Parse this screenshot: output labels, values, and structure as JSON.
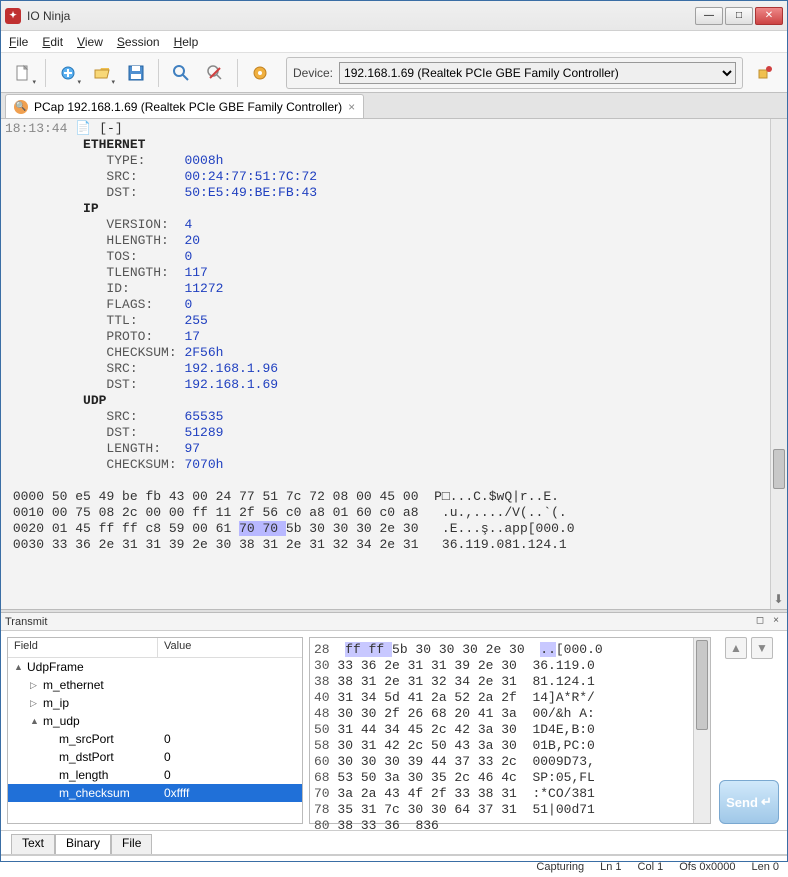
{
  "window": {
    "title": "IO Ninja"
  },
  "menu": [
    "File",
    "Edit",
    "View",
    "Session",
    "Help"
  ],
  "device": {
    "label": "Device:",
    "selected": "192.168.1.69 (Realtek PCIe GBE Family Controller)"
  },
  "tab": {
    "label": "PCap 192.168.1.69 (Realtek PCIe GBE Family Controller)"
  },
  "packet": {
    "timestamp": "18:13:44",
    "collapse": "[-]",
    "sections": [
      {
        "name": "ETHERNET",
        "indent": 1,
        "fields": [
          {
            "k": "TYPE:",
            "v": "0008h"
          },
          {
            "k": "SRC:",
            "v": "00:24:77:51:7C:72"
          },
          {
            "k": "DST:",
            "v": "50:E5:49:BE:FB:43"
          }
        ]
      },
      {
        "name": "IP",
        "indent": 1,
        "fields": [
          {
            "k": "VERSION:",
            "v": "4"
          },
          {
            "k": "HLENGTH:",
            "v": "20"
          },
          {
            "k": "TOS:",
            "v": "0"
          },
          {
            "k": "TLENGTH:",
            "v": "117"
          },
          {
            "k": "ID:",
            "v": "11272"
          },
          {
            "k": "FLAGS:",
            "v": "0"
          },
          {
            "k": "TTL:",
            "v": "255"
          },
          {
            "k": "PROTO:",
            "v": "17"
          },
          {
            "k": "CHECKSUM:",
            "v": "2F56h"
          },
          {
            "k": "SRC:",
            "v": "192.168.1.96"
          },
          {
            "k": "DST:",
            "v": "192.168.1.69"
          }
        ]
      },
      {
        "name": "UDP",
        "indent": 1,
        "fields": [
          {
            "k": "SRC:",
            "v": "65535"
          },
          {
            "k": "DST:",
            "v": "51289"
          },
          {
            "k": "LENGTH:",
            "v": "97"
          },
          {
            "k": "CHECKSUM:",
            "v": "7070h"
          }
        ]
      }
    ],
    "hexdump": [
      {
        "ofs": "0000",
        "hex": "50 e5 49 be fb 43 00 24 77 51 7c 72 08 00 45 00",
        "ascii": "P□...C.$wQ|r..E."
      },
      {
        "ofs": "0010",
        "hex": "00 75 08 2c 00 00 ff 11 2f 56 c0 a8 01 60 c0 a8",
        "ascii": " .u.,..../V(..`(."
      },
      {
        "ofs": "0020",
        "hex": "01 45 ff ff c8 59 00 61 ",
        "hlhex": "70 70 ",
        "hex2": "5b 30 30 30 2e 30",
        "ascii": " .E...ş..app[000.0"
      },
      {
        "ofs": "0030",
        "hex": "33 36 2e 31 31 39 2e 30 38 31 2e 31 32 34 2e 31",
        "ascii": " 36.119.081.124.1"
      }
    ]
  },
  "transmit": {
    "title": "Transmit"
  },
  "tree": {
    "headers": [
      "Field",
      "Value"
    ],
    "rows": [
      {
        "indent": 0,
        "tw": "▲",
        "label": "UdpFrame",
        "val": ""
      },
      {
        "indent": 1,
        "tw": "▷",
        "label": "m_ethernet",
        "val": ""
      },
      {
        "indent": 1,
        "tw": "▷",
        "label": "m_ip",
        "val": ""
      },
      {
        "indent": 1,
        "tw": "▲",
        "label": "m_udp",
        "val": ""
      },
      {
        "indent": 2,
        "tw": "",
        "label": "m_srcPort",
        "val": "0"
      },
      {
        "indent": 2,
        "tw": "",
        "label": "m_dstPort",
        "val": "0"
      },
      {
        "indent": 2,
        "tw": "",
        "label": "m_length",
        "val": "0"
      },
      {
        "indent": 2,
        "tw": "",
        "label": "m_checksum",
        "val": "0xffff",
        "sel": true
      }
    ]
  },
  "hex2": [
    {
      "ofs": "28",
      "pre": " ",
      "hl": "ff ff ",
      "hex": "5b 30 30 30 2e 30",
      "ascii": "..[000.0"
    },
    {
      "ofs": "30",
      "hex": " 33 36 2e 31 31 39 2e 30",
      "ascii": "36.119.0"
    },
    {
      "ofs": "38",
      "hex": " 38 31 2e 31 32 34 2e 31",
      "ascii": "81.124.1"
    },
    {
      "ofs": "40",
      "hex": " 31 34 5d 41 2a 52 2a 2f",
      "ascii": "14]A*R*/"
    },
    {
      "ofs": "48",
      "hex": " 30 30 2f 26 68 20 41 3a",
      "ascii": "00/&h A:"
    },
    {
      "ofs": "50",
      "hex": " 31 44 34 45 2c 42 3a 30",
      "ascii": "1D4E,B:0"
    },
    {
      "ofs": "58",
      "hex": " 30 31 42 2c 50 43 3a 30",
      "ascii": "01B,PC:0"
    },
    {
      "ofs": "60",
      "hex": " 30 30 30 39 44 37 33 2c",
      "ascii": "0009D73,"
    },
    {
      "ofs": "68",
      "hex": " 53 50 3a 30 35 2c 46 4c",
      "ascii": "SP:05,FL"
    },
    {
      "ofs": "70",
      "hex": " 3a 2a 43 4f 2f 33 38 31",
      "ascii": ":*CO/381"
    },
    {
      "ofs": "78",
      "hex": " 35 31 7c 30 30 64 37 31",
      "ascii": "51|00d71"
    },
    {
      "ofs": "80",
      "hex": " 38 33 36",
      "ascii": "836"
    }
  ],
  "bottomTabs": [
    "Text",
    "Binary",
    "File"
  ],
  "bottomActive": 1,
  "status": {
    "capturing": "Capturing",
    "ln": "Ln 1",
    "col": "Col 1",
    "ofs": "Ofs 0x0000",
    "len": "Len 0"
  },
  "sendLabel": "Send"
}
